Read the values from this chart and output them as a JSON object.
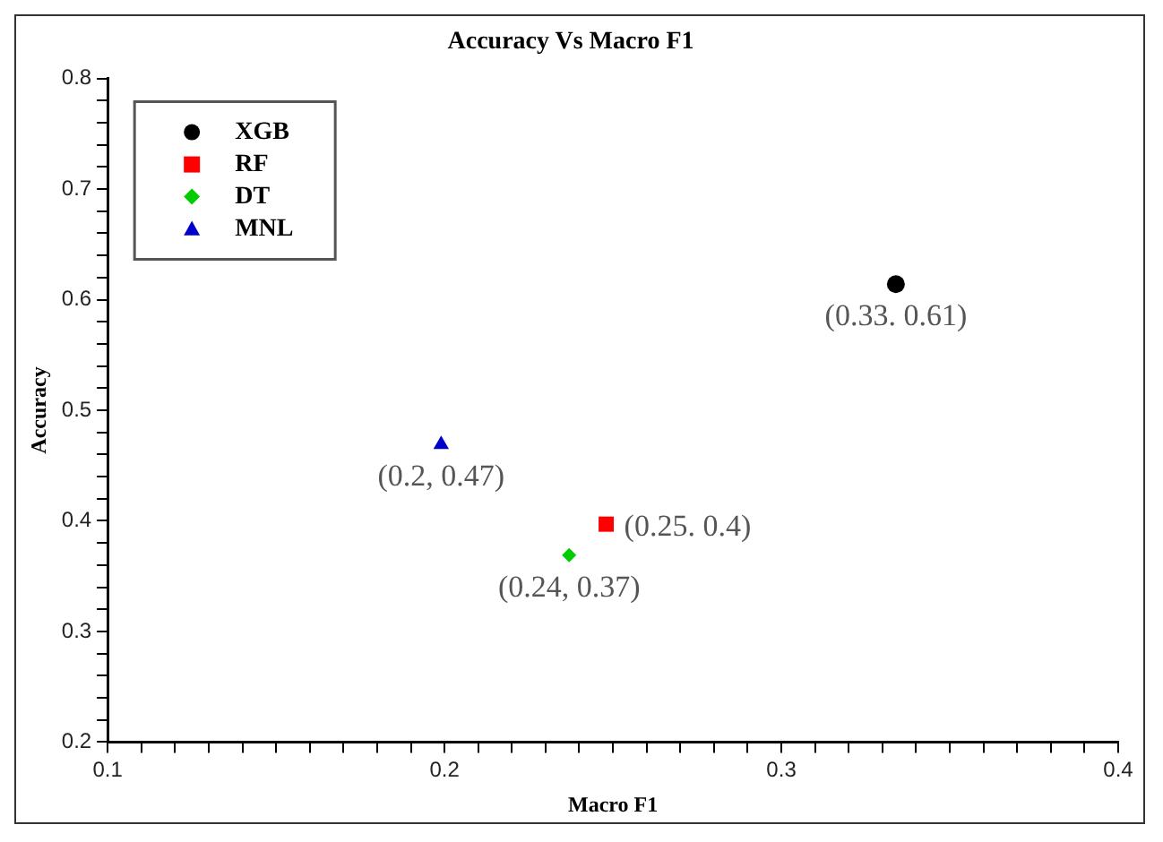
{
  "chart_data": {
    "type": "scatter",
    "title": "Accuracy Vs Macro F1",
    "xlabel": "Macro F1",
    "ylabel": "Accuracy",
    "xlim": [
      0.1,
      0.4
    ],
    "ylim": [
      0.2,
      0.8
    ],
    "xticks": [
      0.1,
      {
        "value": 0.11,
        "label": null
      },
      {
        "value": 0.12,
        "label": null
      },
      {
        "value": 0.13,
        "label": null
      },
      {
        "value": 0.14,
        "label": null
      },
      {
        "value": 0.15,
        "label": null
      },
      {
        "value": 0.16,
        "label": null
      },
      {
        "value": 0.17,
        "label": null
      },
      {
        "value": 0.18,
        "label": null
      },
      {
        "value": 0.19,
        "label": null
      },
      0.2,
      {
        "value": 0.21,
        "label": null
      },
      {
        "value": 0.22,
        "label": null
      },
      {
        "value": 0.23,
        "label": null
      },
      {
        "value": 0.24,
        "label": null
      },
      {
        "value": 0.25,
        "label": null
      },
      {
        "value": 0.26,
        "label": null
      },
      {
        "value": 0.27,
        "label": null
      },
      {
        "value": 0.28,
        "label": null
      },
      {
        "value": 0.29,
        "label": null
      },
      0.3,
      {
        "value": 0.31,
        "label": null
      },
      {
        "value": 0.32,
        "label": null
      },
      {
        "value": 0.33,
        "label": null
      },
      {
        "value": 0.34,
        "label": null
      },
      {
        "value": 0.35,
        "label": null
      },
      {
        "value": 0.36,
        "label": null
      },
      {
        "value": 0.37,
        "label": null
      },
      {
        "value": 0.38,
        "label": null
      },
      {
        "value": 0.39,
        "label": null
      },
      0.4
    ],
    "yticks": [
      0.2,
      {
        "value": 0.22,
        "label": null
      },
      {
        "value": 0.24,
        "label": null
      },
      {
        "value": 0.26,
        "label": null
      },
      {
        "value": 0.28,
        "label": null
      },
      0.3,
      {
        "value": 0.32,
        "label": null
      },
      {
        "value": 0.34,
        "label": null
      },
      {
        "value": 0.36,
        "label": null
      },
      {
        "value": 0.38,
        "label": null
      },
      0.4,
      {
        "value": 0.42,
        "label": null
      },
      {
        "value": 0.44,
        "label": null
      },
      {
        "value": 0.46,
        "label": null
      },
      {
        "value": 0.48,
        "label": null
      },
      0.5,
      {
        "value": 0.52,
        "label": null
      },
      {
        "value": 0.54,
        "label": null
      },
      {
        "value": 0.56,
        "label": null
      },
      {
        "value": 0.58,
        "label": null
      },
      0.6,
      {
        "value": 0.62,
        "label": null
      },
      {
        "value": 0.64,
        "label": null
      },
      {
        "value": 0.66,
        "label": null
      },
      {
        "value": 0.68,
        "label": null
      },
      0.7,
      {
        "value": 0.72,
        "label": null
      },
      {
        "value": 0.74,
        "label": null
      },
      {
        "value": 0.76,
        "label": null
      },
      {
        "value": 0.78,
        "label": null
      },
      0.8
    ],
    "grid": false,
    "legend": "top left",
    "series": [
      {
        "name": "XGB",
        "color": "#000000",
        "marker": "circle",
        "x": [
          0.334
        ],
        "values": [
          0.614
        ],
        "value_labels": [
          "(0.33. 0.61)"
        ]
      },
      {
        "name": "RF",
        "color": "#ff0000",
        "marker": "square",
        "x": [
          0.248
        ],
        "values": [
          0.397
        ],
        "value_labels": [
          "(0.25. 0.4)"
        ]
      },
      {
        "name": "DT",
        "color": "#00cc00",
        "marker": "diamond",
        "x": [
          0.237
        ],
        "values": [
          0.369
        ],
        "value_labels": [
          "(0.24, 0.37)"
        ]
      },
      {
        "name": "MNL",
        "color": "#0000cc",
        "marker": "triangle",
        "x": [
          0.199
        ],
        "values": [
          0.469
        ],
        "value_labels": [
          "(0.2, 0.47)"
        ]
      }
    ]
  }
}
